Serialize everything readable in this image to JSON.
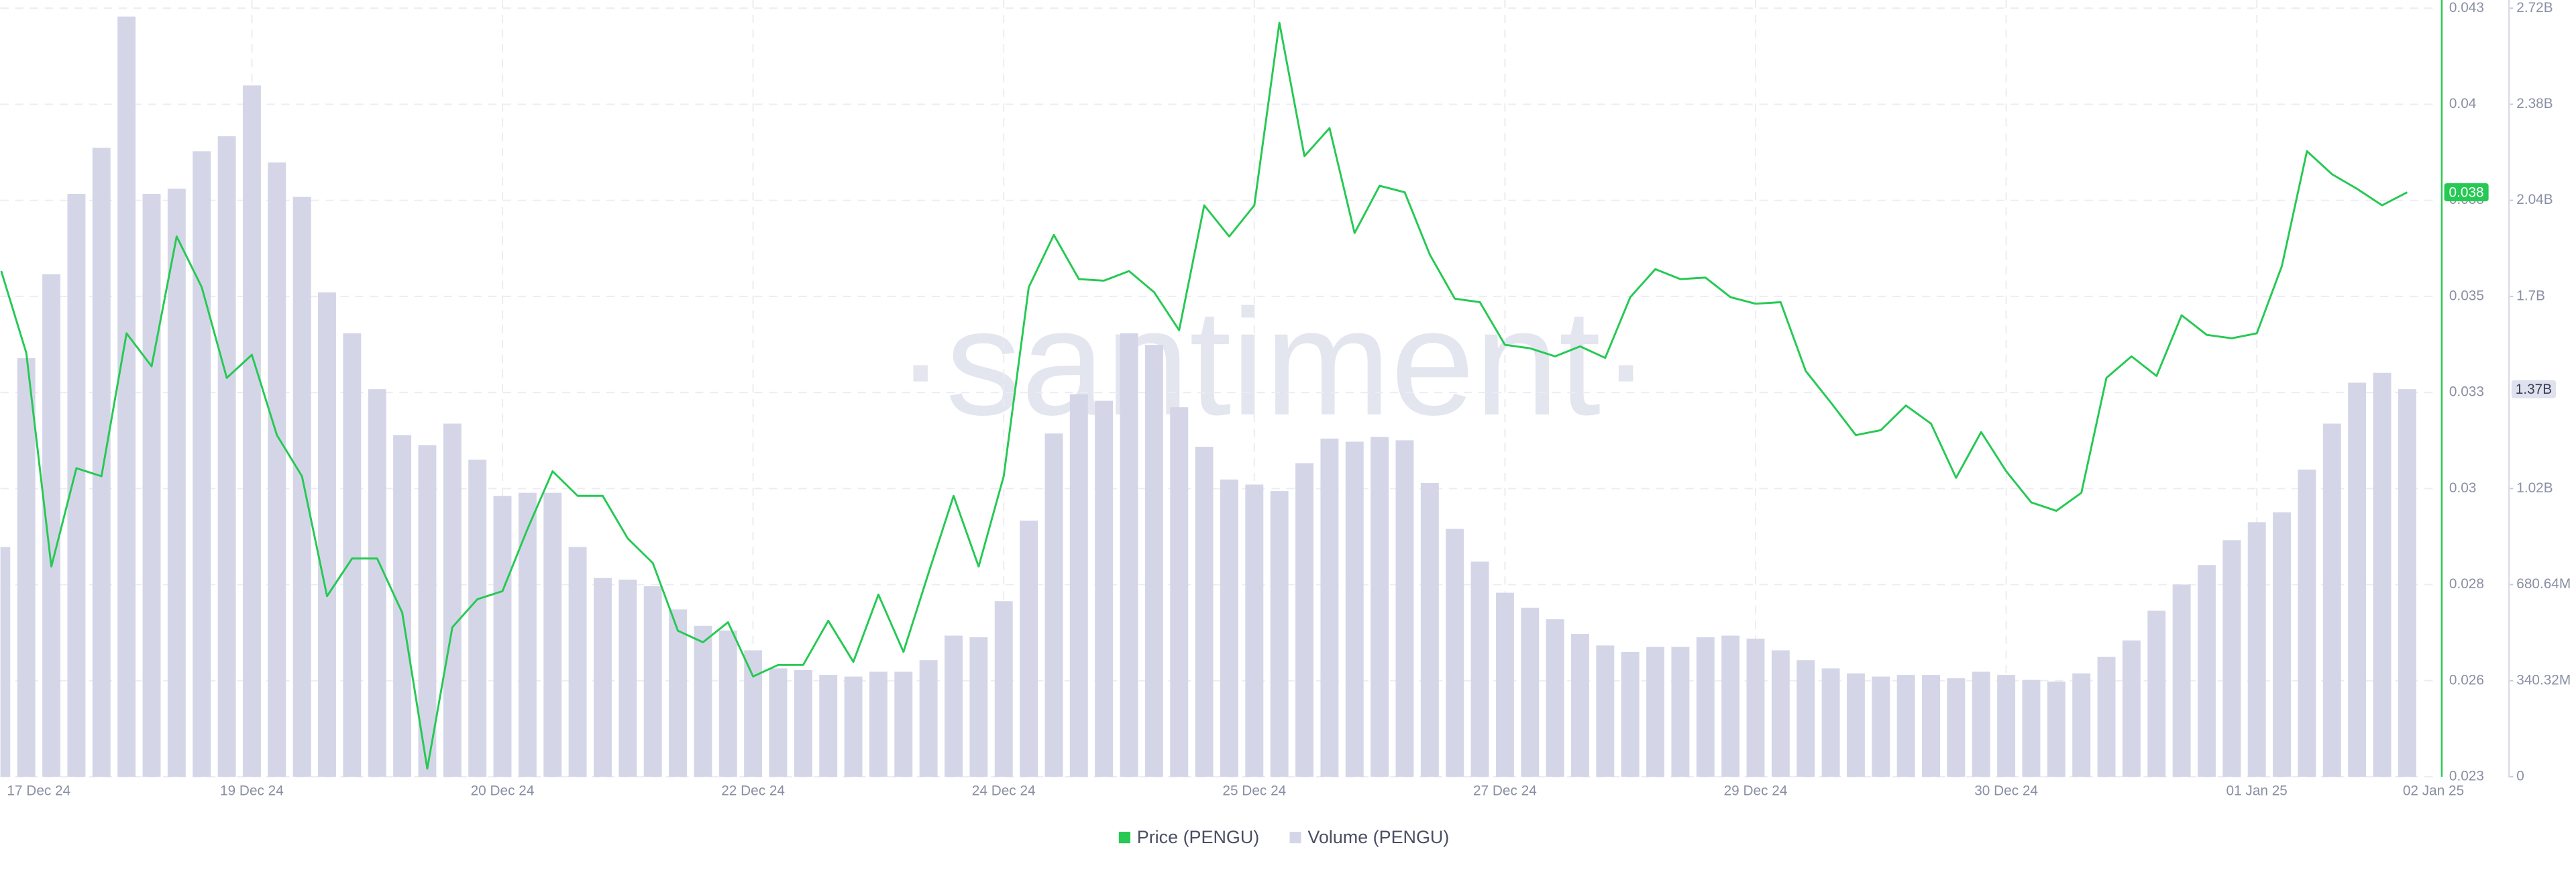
{
  "chart_data": {
    "type": "bar",
    "watermark": "·santiment·",
    "categories": [
      null,
      "17 Dec 24",
      null,
      null,
      null,
      null,
      null,
      null,
      null,
      null,
      "19 Dec 24",
      null,
      null,
      null,
      null,
      null,
      null,
      null,
      null,
      null,
      "20 Dec 24",
      null,
      null,
      null,
      null,
      null,
      null,
      null,
      null,
      null,
      "22 Dec 24",
      null,
      null,
      null,
      null,
      null,
      null,
      null,
      null,
      null,
      "24 Dec 24",
      null,
      null,
      null,
      null,
      null,
      null,
      null,
      null,
      null,
      "25 Dec 24",
      null,
      null,
      null,
      null,
      null,
      null,
      null,
      null,
      null,
      "27 Dec 24",
      null,
      null,
      null,
      null,
      null,
      null,
      null,
      null,
      null,
      "29 Dec 24",
      null,
      null,
      null,
      null,
      null,
      null,
      null,
      null,
      null,
      "30 Dec 24",
      null,
      null,
      null,
      null,
      null,
      null,
      null,
      null,
      null,
      "01 Jan 25",
      null,
      null,
      null,
      null,
      null,
      "02 Jan 25"
    ],
    "series": [
      {
        "name": "Price (PENGU)",
        "type": "line",
        "color": "#26c953",
        "values": [
          0.03616,
          0.03403,
          0.02847,
          0.03103,
          0.03082,
          0.03454,
          0.03368,
          0.03706,
          0.03574,
          0.03338,
          0.03398,
          0.03189,
          0.03082,
          0.0277,
          0.02868,
          0.02868,
          0.02727,
          0.02321,
          0.02689,
          0.02762,
          0.02783,
          0.02945,
          0.03095,
          0.03031,
          0.03031,
          0.0292,
          0.02856,
          0.0268,
          0.0265,
          0.02702,
          0.02561,
          0.02591,
          0.02591,
          0.02706,
          0.02599,
          0.02774,
          0.02625,
          0.0283,
          0.03031,
          0.02847,
          0.03082,
          0.03574,
          0.0371,
          0.03595,
          0.03591,
          0.03616,
          0.03561,
          0.03462,
          0.03787,
          0.03706,
          0.03787,
          0.04262,
          0.03915,
          0.03988,
          0.03715,
          0.03838,
          0.03821,
          0.03659,
          0.03544,
          0.03535,
          0.03424,
          0.03415,
          0.03394,
          0.0342,
          0.0339,
          0.03548,
          0.03621,
          0.03595,
          0.03599,
          0.03548,
          0.03531,
          0.03535,
          0.03356,
          0.03274,
          0.03189,
          0.03202,
          0.03266,
          0.03219,
          0.03078,
          0.03197,
          0.03095,
          0.03014,
          0.02992,
          0.03039,
          0.03338,
          0.03394,
          0.03343,
          0.03501,
          0.0345,
          0.03441,
          0.03454,
          0.03629,
          0.03928,
          0.03868,
          0.0383,
          0.03787,
          0.03821
        ],
        "value_labels": [
          null,
          null,
          null,
          null,
          null,
          null,
          null,
          null,
          null,
          null,
          null,
          null,
          null,
          null,
          null,
          null,
          null,
          null,
          null,
          null,
          null,
          null,
          null,
          null,
          null,
          null,
          null,
          null,
          null,
          null,
          null,
          null,
          null,
          null,
          null,
          null,
          null,
          null,
          null,
          null,
          null,
          null,
          null,
          null,
          null,
          null,
          null,
          null,
          null,
          null,
          null,
          null,
          null,
          null,
          null,
          null,
          null,
          null,
          null,
          null,
          null,
          null,
          null,
          null,
          null,
          null,
          null,
          null,
          null,
          null,
          null,
          null,
          null,
          null,
          null,
          null,
          null,
          null,
          null,
          null,
          null,
          null,
          null,
          null,
          null,
          null,
          null,
          null,
          null,
          null,
          null,
          null,
          null,
          null,
          null,
          null,
          "0.038"
        ]
      },
      {
        "name": "Volume (PENGU)",
        "type": "bar",
        "axis": "y2",
        "color": "#d4d6e8",
        "values": [
          814000000,
          1483000000,
          1780000000,
          2065000000,
          2228000000,
          2693000000,
          2065000000,
          2083000000,
          2216000000,
          2269000000,
          2449000000,
          2176000000,
          2054000000,
          1716000000,
          1571000000,
          1373000000,
          1210000000,
          1175000000,
          1251000000,
          1123000000,
          995000000,
          1006000000,
          1006000000,
          814000000,
          704000000,
          698000000,
          675000000,
          593000000,
          535000000,
          518000000,
          448000000,
          384000000,
          378000000,
          361000000,
          355000000,
          372000000,
          372000000,
          413000000,
          500000000,
          494000000,
          622000000,
          907000000,
          1216000000,
          1355000000,
          1332000000,
          1571000000,
          1530000000,
          1309000000,
          1169000000,
          1053000000,
          1035000000,
          1012000000,
          1111000000,
          1198000000,
          1187000000,
          1204000000,
          1192000000,
          1041000000,
          878000000,
          762000000,
          652000000,
          599000000,
          558000000,
          506000000,
          465000000,
          442000000,
          460000000,
          460000000,
          494000000,
          500000000,
          489000000,
          448000000,
          413000000,
          384000000,
          366000000,
          355000000,
          361000000,
          361000000,
          349000000,
          372000000,
          361000000,
          343000000,
          337000000,
          366000000,
          425000000,
          483000000,
          588000000,
          681000000,
          750000000,
          838000000,
          902000000,
          937000000,
          1088000000,
          1251000000,
          1396000000,
          1431000000,
          1373000000
        ],
        "value_labels": [
          null,
          null,
          null,
          null,
          null,
          null,
          null,
          null,
          null,
          null,
          null,
          null,
          null,
          null,
          null,
          null,
          null,
          null,
          null,
          null,
          null,
          null,
          null,
          null,
          null,
          null,
          null,
          null,
          null,
          null,
          null,
          null,
          null,
          null,
          null,
          null,
          null,
          null,
          null,
          null,
          null,
          null,
          null,
          null,
          null,
          null,
          null,
          null,
          null,
          null,
          null,
          null,
          null,
          null,
          null,
          null,
          null,
          null,
          null,
          null,
          null,
          null,
          null,
          null,
          null,
          null,
          null,
          null,
          null,
          null,
          null,
          null,
          null,
          null,
          null,
          null,
          null,
          null,
          null,
          null,
          null,
          null,
          null,
          null,
          null,
          null,
          null,
          null,
          null,
          null,
          null,
          null,
          null,
          null,
          null,
          null,
          "1.37B"
        ]
      }
    ],
    "ylim": [
      0.023,
      0.043
    ],
    "yticks": [
      0.023,
      {
        "value": 0.0255,
        "label": "0.026"
      },
      0.028,
      {
        "value": 0.0305,
        "label": "0.03"
      },
      0.033,
      {
        "value": 0.0355,
        "label": "0.035"
      },
      0.038,
      {
        "value": 0.0405,
        "label": "0.04"
      },
      0.043
    ],
    "y2lim": [
      0,
      2722560000
    ],
    "y2ticks": [
      0,
      {
        "value": 340320000,
        "label": "340.32M"
      },
      {
        "value": 680640000,
        "label": "680.64M"
      },
      {
        "value": 1020960000,
        "label": "1.02B"
      },
      {
        "value": 1701600000,
        "label": "1.7B"
      },
      {
        "value": 2041920000,
        "label": "2.04B"
      },
      {
        "value": 2382240000,
        "label": "2.38B"
      },
      {
        "value": 2722560000,
        "label": "2.72B"
      }
    ],
    "grid": true,
    "legend": "bottom"
  }
}
